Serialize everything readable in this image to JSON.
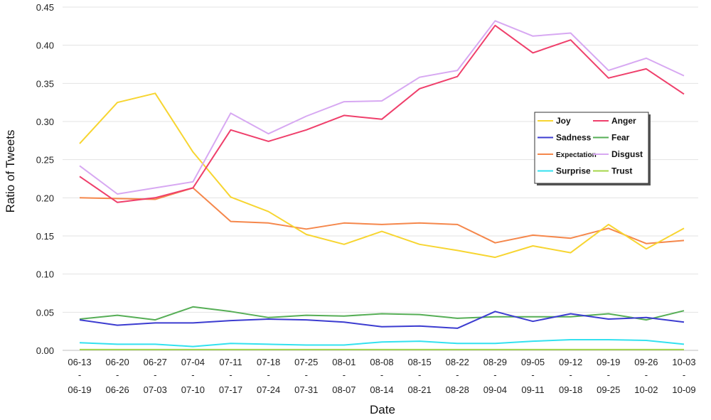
{
  "chart_data": {
    "type": "line",
    "title": "",
    "xlabel": "Date",
    "ylabel": "Ratio of Tweets",
    "ylim": [
      0,
      0.45
    ],
    "yticks": [
      "0.00",
      "0.05",
      "0.10",
      "0.15",
      "0.20",
      "0.25",
      "0.30",
      "0.35",
      "0.40",
      "0.45"
    ],
    "grid": "horizontal",
    "legend_position": "right, mid-height",
    "categories": [
      {
        "start": "06-13",
        "sep": "-",
        "end": "06-19"
      },
      {
        "start": "06-20",
        "sep": "-",
        "end": "06-26"
      },
      {
        "start": "06-27",
        "sep": "-",
        "end": "07-03"
      },
      {
        "start": "07-04",
        "sep": "-",
        "end": "07-10"
      },
      {
        "start": "07-11",
        "sep": "-",
        "end": "07-17"
      },
      {
        "start": "07-18",
        "sep": "-",
        "end": "07-24"
      },
      {
        "start": "07-25",
        "sep": "-",
        "end": "07-31"
      },
      {
        "start": "08-01",
        "sep": "-",
        "end": "08-07"
      },
      {
        "start": "08-08",
        "sep": "-",
        "end": "08-14"
      },
      {
        "start": "08-15",
        "sep": "-",
        "end": "08-21"
      },
      {
        "start": "08-22",
        "sep": "-",
        "end": "08-28"
      },
      {
        "start": "08-29",
        "sep": "-",
        "end": "09-04"
      },
      {
        "start": "09-05",
        "sep": "-",
        "end": "09-11"
      },
      {
        "start": "09-12",
        "sep": "-",
        "end": "09-18"
      },
      {
        "start": "09-19",
        "sep": "-",
        "end": "09-25"
      },
      {
        "start": "09-26",
        "sep": "-",
        "end": "10-02"
      },
      {
        "start": "10-03",
        "sep": "-",
        "end": "10-09"
      }
    ],
    "series": [
      {
        "name": "Joy",
        "color": "#f7d531",
        "values": [
          0.271,
          0.325,
          0.337,
          0.26,
          0.201,
          0.182,
          0.152,
          0.139,
          0.156,
          0.139,
          0.131,
          0.122,
          0.137,
          0.128,
          0.165,
          0.133,
          0.16
        ]
      },
      {
        "name": "Anger",
        "color": "#ef3f6b",
        "values": [
          0.228,
          0.194,
          0.2,
          0.213,
          0.289,
          0.274,
          0.289,
          0.308,
          0.303,
          0.343,
          0.359,
          0.426,
          0.39,
          0.407,
          0.357,
          0.369,
          0.336
        ]
      },
      {
        "name": "Sadness",
        "color": "#3c3cd0",
        "values": [
          0.04,
          0.033,
          0.036,
          0.036,
          0.039,
          0.041,
          0.04,
          0.037,
          0.031,
          0.032,
          0.029,
          0.051,
          0.038,
          0.048,
          0.041,
          0.043,
          0.037
        ]
      },
      {
        "name": "Fear",
        "color": "#56ae56",
        "values": [
          0.041,
          0.046,
          0.04,
          0.057,
          0.051,
          0.043,
          0.046,
          0.045,
          0.048,
          0.047,
          0.042,
          0.044,
          0.044,
          0.044,
          0.048,
          0.04,
          0.052
        ]
      },
      {
        "name": "Expectation",
        "color": "#f5874b",
        "values": [
          0.2,
          0.199,
          0.198,
          0.213,
          0.169,
          0.167,
          0.159,
          0.167,
          0.165,
          0.167,
          0.165,
          0.141,
          0.151,
          0.147,
          0.16,
          0.14,
          0.144
        ]
      },
      {
        "name": "Disgust",
        "color": "#d7a8f2",
        "values": [
          0.242,
          0.205,
          0.213,
          0.221,
          0.311,
          0.284,
          0.307,
          0.326,
          0.327,
          0.358,
          0.367,
          0.432,
          0.412,
          0.416,
          0.367,
          0.383,
          0.36
        ]
      },
      {
        "name": "Surprise",
        "color": "#33e1ef",
        "values": [
          0.01,
          0.008,
          0.008,
          0.005,
          0.009,
          0.008,
          0.007,
          0.007,
          0.011,
          0.012,
          0.009,
          0.009,
          0.012,
          0.014,
          0.014,
          0.013,
          0.008
        ]
      },
      {
        "name": "Trust",
        "color": "#a5d64a",
        "values": [
          0.001,
          0.001,
          0.001,
          0.001,
          0.001,
          0.001,
          0.001,
          0.001,
          0.001,
          0.001,
          0.001,
          0.001,
          0.001,
          0.001,
          0.001,
          0.001,
          0.001
        ]
      }
    ],
    "legend_order": [
      [
        "Joy",
        "Anger"
      ],
      [
        "Sadness",
        "Fear"
      ],
      [
        "Expectation",
        "Disgust"
      ],
      [
        "Surprise",
        "Trust"
      ]
    ]
  }
}
